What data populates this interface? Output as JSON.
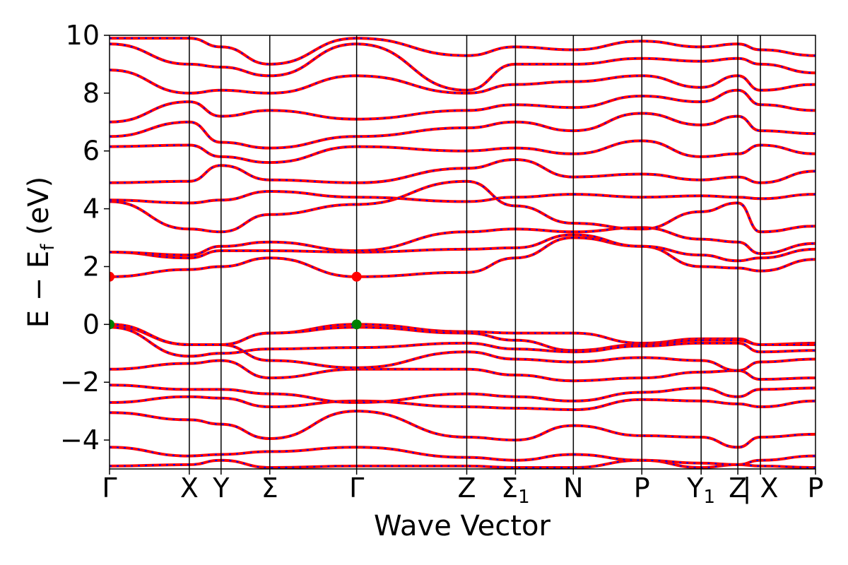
{
  "chart_data": {
    "type": "line",
    "title": "",
    "xlabel": "Wave Vector",
    "ylabel_parts": {
      "main": "E − E",
      "sub": "f",
      "unit": " (eV)"
    },
    "ylim": [
      -5,
      10
    ],
    "yticks": [
      "−4",
      "−2",
      "0",
      "2",
      "4",
      "6",
      "8",
      "10"
    ],
    "ytick_values": [
      -4,
      -2,
      0,
      2,
      4,
      6,
      8,
      10
    ],
    "xlim": [
      0,
      10
    ],
    "kpath": [
      {
        "label": "Γ",
        "sub": "",
        "x": 0.0
      },
      {
        "label": "X",
        "sub": "",
        "x": 1.13
      },
      {
        "label": "Y",
        "sub": "",
        "x": 1.58
      },
      {
        "label": "Σ",
        "sub": "",
        "x": 2.27
      },
      {
        "label": "Γ",
        "sub": "",
        "x": 3.5
      },
      {
        "label": "Z",
        "sub": "",
        "x": 5.06
      },
      {
        "label": "Σ",
        "sub": "1",
        "x": 5.75
      },
      {
        "label": "N",
        "sub": "",
        "x": 6.57
      },
      {
        "label": "P",
        "sub": "",
        "x": 7.54
      },
      {
        "label": "Y",
        "sub": "1",
        "x": 8.38
      },
      {
        "label": "Z",
        "sub": "",
        "x": 8.9
      },
      {
        "label": "| X",
        "sub": "",
        "x": 9.22
      },
      {
        "label": "P",
        "sub": "",
        "x": 10.0
      }
    ],
    "colors": {
      "dft": "#ff0000",
      "wannier": "#0000ff",
      "cbm": "#ff0000",
      "vbm": "#008000"
    },
    "cbm_points": [
      {
        "x": 0.0,
        "y": 1.65
      },
      {
        "x": 3.5,
        "y": 1.65
      }
    ],
    "vbm_points": [
      {
        "x": 0.0,
        "y": 0.0
      },
      {
        "x": 3.5,
        "y": 0.0
      }
    ],
    "series": [
      {
        "x": [
          0,
          1.13,
          1.58,
          2.27,
          3.5,
          5.06,
          5.75,
          6.57,
          7.54,
          8.38,
          8.9,
          9.22,
          10
        ],
        "y": [
          -4.9,
          -4.85,
          -4.7,
          -4.95,
          -4.9,
          -4.9,
          -4.95,
          -4.95,
          -4.7,
          -4.95,
          -4.85,
          -4.9,
          -4.95
        ]
      },
      {
        "x": [
          0,
          1.13,
          1.58,
          2.27,
          3.5,
          5.06,
          5.75,
          6.57,
          7.54,
          8.38,
          8.9,
          9.22,
          10
        ],
        "y": [
          -4.25,
          -4.55,
          -4.5,
          -4.4,
          -4.25,
          -4.6,
          -4.7,
          -4.5,
          -4.7,
          -4.8,
          -4.85,
          -4.7,
          -4.55
        ]
      },
      {
        "x": [
          0,
          1.13,
          1.58,
          2.27,
          3.5,
          5.06,
          5.75,
          6.57,
          7.54,
          8.38,
          8.9,
          9.22,
          10
        ],
        "y": [
          -3.05,
          -3.3,
          -3.45,
          -3.95,
          -3.0,
          -3.9,
          -4.0,
          -3.5,
          -3.85,
          -3.9,
          -4.25,
          -3.9,
          -3.8
        ]
      },
      {
        "x": [
          0,
          1.13,
          1.58,
          2.27,
          3.5,
          5.06,
          5.75,
          6.57,
          7.54,
          8.38,
          8.9,
          9.22,
          10
        ],
        "y": [
          -2.7,
          -2.5,
          -2.55,
          -2.85,
          -2.65,
          -2.85,
          -2.9,
          -2.95,
          -2.6,
          -2.65,
          -2.75,
          -2.85,
          -2.65
        ]
      },
      {
        "x": [
          0,
          1.13,
          1.58,
          2.27,
          3.5,
          5.06,
          5.75,
          6.57,
          7.54,
          8.38,
          8.9,
          9.22,
          10
        ],
        "y": [
          -2.1,
          -2.25,
          -2.25,
          -2.4,
          -2.7,
          -2.4,
          -2.5,
          -2.65,
          -2.35,
          -2.2,
          -2.5,
          -2.25,
          -2.2
        ]
      },
      {
        "x": [
          0,
          1.13,
          1.58,
          2.27,
          3.5,
          5.06,
          5.75,
          6.57,
          7.54,
          8.38,
          8.9,
          9.22,
          10
        ],
        "y": [
          -1.55,
          -1.35,
          -1.25,
          -1.85,
          -1.55,
          -1.55,
          -1.75,
          -1.95,
          -1.85,
          -1.65,
          -1.6,
          -1.9,
          -1.85
        ]
      },
      {
        "x": [
          0,
          1.13,
          1.58,
          2.27,
          3.5,
          5.06,
          5.75,
          6.57,
          7.54,
          8.38,
          8.9,
          9.22,
          10
        ],
        "y": [
          -0.05,
          -0.7,
          -0.7,
          -1.25,
          -1.5,
          -0.95,
          -1.2,
          -1.3,
          -1.15,
          -1.25,
          -1.6,
          -1.3,
          -1.2
        ]
      },
      {
        "x": [
          0,
          1.13,
          1.58,
          2.27,
          3.5,
          5.06,
          5.75,
          6.57,
          7.54,
          8.38,
          8.9,
          9.22,
          10
        ],
        "y": [
          0.0,
          -0.7,
          -0.7,
          -0.3,
          0.0,
          -0.25,
          -0.3,
          -0.3,
          -0.65,
          -0.5,
          -0.5,
          -0.7,
          -0.65
        ]
      },
      {
        "x": [
          0,
          1.13,
          1.58,
          2.27,
          3.5,
          5.06,
          5.75,
          6.57,
          7.54,
          8.38,
          8.9,
          9.22,
          10
        ],
        "y": [
          0.0,
          -0.7,
          -0.7,
          -0.3,
          -0.1,
          -0.3,
          -0.55,
          -0.9,
          -0.7,
          -0.55,
          -0.55,
          -0.7,
          -0.7
        ]
      },
      {
        "x": [
          0,
          1.13,
          1.58,
          2.27,
          3.5,
          5.06,
          5.75,
          6.57,
          7.54,
          8.38,
          8.9,
          9.22,
          10
        ],
        "y": [
          -0.1,
          -1.1,
          -1.0,
          -0.85,
          -0.8,
          -0.65,
          -0.85,
          -0.95,
          -0.75,
          -0.65,
          -0.65,
          -0.95,
          -0.9
        ]
      },
      {
        "x": [
          0,
          1.13,
          1.58,
          2.27,
          3.5,
          5.06,
          5.75,
          6.57,
          7.54,
          8.38,
          8.9,
          9.22,
          10
        ],
        "y": [
          1.65,
          1.9,
          2.0,
          2.3,
          1.65,
          1.8,
          2.3,
          3.0,
          2.7,
          2.0,
          1.95,
          1.85,
          2.25
        ]
      },
      {
        "x": [
          0,
          1.13,
          1.58,
          2.27,
          3.5,
          5.06,
          5.75,
          6.57,
          7.54,
          8.38,
          8.9,
          9.22,
          10
        ],
        "y": [
          2.5,
          2.3,
          2.55,
          2.55,
          2.5,
          2.6,
          2.65,
          3.1,
          2.7,
          2.4,
          2.2,
          2.3,
          2.6
        ]
      },
      {
        "x": [
          0,
          1.13,
          1.58,
          2.27,
          3.5,
          5.06,
          5.75,
          6.57,
          7.54,
          8.38,
          8.9,
          9.22,
          10
        ],
        "y": [
          2.5,
          2.4,
          2.7,
          2.85,
          2.55,
          3.2,
          3.3,
          3.2,
          3.35,
          2.95,
          2.85,
          2.45,
          2.8
        ]
      },
      {
        "x": [
          0,
          1.13,
          1.58,
          2.27,
          3.5,
          5.06,
          5.75,
          6.57,
          7.54,
          8.38,
          8.9,
          9.22,
          10
        ],
        "y": [
          4.25,
          3.3,
          3.2,
          3.8,
          4.15,
          4.95,
          4.1,
          3.5,
          3.3,
          3.9,
          4.2,
          3.2,
          3.4
        ]
      },
      {
        "x": [
          0,
          1.13,
          1.58,
          2.27,
          3.5,
          5.06,
          5.75,
          6.57,
          7.54,
          8.38,
          8.9,
          9.22,
          10
        ],
        "y": [
          4.3,
          4.2,
          4.3,
          4.6,
          4.4,
          4.25,
          4.4,
          4.5,
          4.4,
          4.45,
          4.4,
          4.35,
          4.5
        ]
      },
      {
        "x": [
          0,
          1.13,
          1.58,
          2.27,
          3.5,
          5.06,
          5.75,
          6.57,
          7.54,
          8.38,
          8.9,
          9.22,
          10
        ],
        "y": [
          4.9,
          4.95,
          5.5,
          5.0,
          4.9,
          5.4,
          5.7,
          5.1,
          5.2,
          5.0,
          5.1,
          4.9,
          5.3
        ]
      },
      {
        "x": [
          0,
          1.13,
          1.58,
          2.27,
          3.5,
          5.06,
          5.75,
          6.57,
          7.54,
          8.38,
          8.9,
          9.22,
          10
        ],
        "y": [
          6.15,
          6.2,
          5.8,
          5.6,
          6.15,
          6.0,
          6.1,
          5.9,
          6.35,
          5.8,
          5.9,
          6.2,
          5.9
        ]
      },
      {
        "x": [
          0,
          1.13,
          1.58,
          2.27,
          3.5,
          5.06,
          5.75,
          6.57,
          7.54,
          8.38,
          8.9,
          9.22,
          10
        ],
        "y": [
          6.5,
          7.0,
          6.3,
          6.1,
          6.5,
          6.8,
          7.0,
          6.7,
          7.3,
          6.9,
          7.2,
          6.7,
          6.6
        ]
      },
      {
        "x": [
          0,
          1.13,
          1.58,
          2.27,
          3.5,
          5.06,
          5.75,
          6.57,
          7.54,
          8.38,
          8.9,
          9.22,
          10
        ],
        "y": [
          7.0,
          7.7,
          7.2,
          7.4,
          7.1,
          7.4,
          7.6,
          7.5,
          7.9,
          7.7,
          8.1,
          7.6,
          7.4
        ]
      },
      {
        "x": [
          0,
          1.13,
          1.58,
          2.27,
          3.5,
          5.06,
          5.75,
          6.57,
          7.54,
          8.38,
          8.9,
          9.22,
          10
        ],
        "y": [
          8.8,
          8.0,
          8.1,
          8.0,
          8.6,
          8.0,
          8.3,
          8.4,
          8.6,
          8.2,
          8.6,
          8.1,
          8.3
        ]
      },
      {
        "x": [
          0,
          1.13,
          1.58,
          2.27,
          3.5,
          5.06,
          5.75,
          6.57,
          7.54,
          8.38,
          8.9,
          9.22,
          10
        ],
        "y": [
          9.7,
          9.0,
          8.9,
          8.6,
          9.7,
          8.1,
          9.0,
          9.0,
          9.2,
          9.1,
          9.2,
          9.0,
          8.7
        ]
      },
      {
        "x": [
          0,
          1.13,
          1.58,
          2.27,
          3.5,
          5.06,
          5.75,
          6.57,
          7.54,
          8.38,
          8.9,
          9.22,
          10
        ],
        "y": [
          9.9,
          9.9,
          9.6,
          9.0,
          9.9,
          9.3,
          9.6,
          9.5,
          9.8,
          9.6,
          9.7,
          9.5,
          9.3
        ]
      }
    ]
  }
}
